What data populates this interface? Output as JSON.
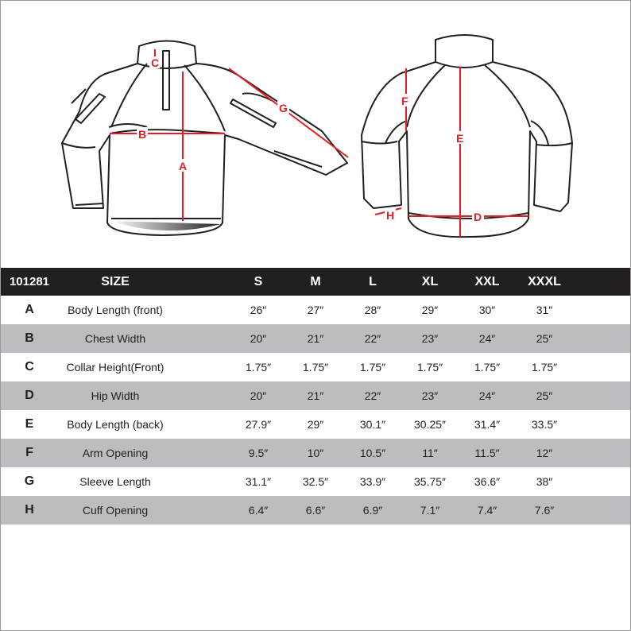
{
  "diagram": {
    "front_labels": [
      "C",
      "B",
      "A",
      "G"
    ],
    "back_labels": [
      "F",
      "E",
      "H",
      "D"
    ],
    "measure_color": "#e31e24"
  },
  "table": {
    "header": {
      "code": "101281",
      "size": "SIZE",
      "sizes": [
        "S",
        "M",
        "L",
        "XL",
        "XXL",
        "XXXL"
      ]
    },
    "rows": [
      {
        "letter": "A",
        "name": "Body Length (front)",
        "values": [
          "26″",
          "27″",
          "28″",
          "29″",
          "30″",
          "31″"
        ]
      },
      {
        "letter": "B",
        "name": "Chest Width",
        "values": [
          "20″",
          "21″",
          "22″",
          "23″",
          "24″",
          "25″"
        ]
      },
      {
        "letter": "C",
        "name": "Collar Height(Front)",
        "values": [
          "1.75″",
          "1.75″",
          "1.75″",
          "1.75″",
          "1.75″",
          "1.75″"
        ]
      },
      {
        "letter": "D",
        "name": "Hip Width",
        "values": [
          "20″",
          "21″",
          "22″",
          "23″",
          "24″",
          "25″"
        ]
      },
      {
        "letter": "E",
        "name": "Body Length (back)",
        "values": [
          "27.9″",
          "29″",
          "30.1″",
          "30.25″",
          "31.4″",
          "33.5″"
        ]
      },
      {
        "letter": "F",
        "name": "Arm Opening",
        "values": [
          "9.5″",
          "10″",
          "10.5″",
          "11″",
          "11.5″",
          "12″"
        ]
      },
      {
        "letter": "G",
        "name": "Sleeve Length",
        "values": [
          "31.1″",
          "32.5″",
          "33.9″",
          "35.75″",
          "36.6″",
          "38″"
        ]
      },
      {
        "letter": "H",
        "name": "Cuff Opening",
        "values": [
          "6.4″",
          "6.6″",
          "6.9″",
          "7.1″",
          "7.4″",
          "7.6″"
        ]
      }
    ]
  }
}
